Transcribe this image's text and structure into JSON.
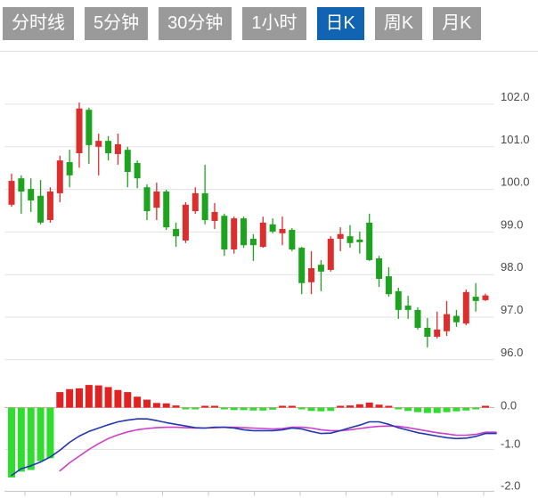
{
  "toolbar": {
    "tabs": [
      {
        "name": "tab-timeline",
        "label": "分时线",
        "active": false
      },
      {
        "name": "tab-5min",
        "label": "5分钟",
        "active": false
      },
      {
        "name": "tab-30min",
        "label": "30分钟",
        "active": false
      },
      {
        "name": "tab-1hour",
        "label": "1小时",
        "active": false
      },
      {
        "name": "tab-daily-k",
        "label": "日K",
        "active": true
      },
      {
        "name": "tab-weekly-k",
        "label": "周K",
        "active": false
      },
      {
        "name": "tab-monthly-k",
        "label": "月K",
        "active": false
      }
    ]
  },
  "colors": {
    "tab_bg": "#9a9a9a",
    "tab_active_bg": "#1064b1",
    "tab_text": "#ffffff",
    "candle_up": "#dd2e2e",
    "candle_down": "#1ea31e",
    "macd_up": "#e02222",
    "macd_down": "#2edd2e",
    "dif_line": "#2236b2",
    "dea_line": "#cc3ecb",
    "grid": "#e3e3e3",
    "zero_line": "#eaa6a6",
    "axis_line": "#c9c9c9",
    "axis_text": "#4a4a4a",
    "frame": "#dcdcdc"
  },
  "chart_data": [
    {
      "type": "candlestick",
      "panel": "price",
      "title": "",
      "xlabel": "",
      "ylabel": "",
      "grid": true,
      "legend": "none",
      "y_ticks": [
        102.0,
        101.0,
        100.0,
        99.0,
        98.0,
        97.0,
        96.0
      ],
      "y_tick_labels": [
        "102.0",
        "101.0",
        "100.0",
        "99.0",
        "98.0",
        "97.0",
        "96.0"
      ],
      "ylim": [
        95.7,
        103.1
      ],
      "color_convention": "red = rise, green = fall",
      "candles_ohlc": [
        [
          99.64,
          100.37,
          99.59,
          100.2
        ],
        [
          100.26,
          100.33,
          99.43,
          99.95
        ],
        [
          100.01,
          100.26,
          99.47,
          99.74
        ],
        [
          99.85,
          100.22,
          99.18,
          99.22
        ],
        [
          99.28,
          100.05,
          99.22,
          99.95
        ],
        [
          99.91,
          100.79,
          99.7,
          100.68
        ],
        [
          100.64,
          100.93,
          100.05,
          100.33
        ],
        [
          100.85,
          102.04,
          100.51,
          101.9
        ],
        [
          101.87,
          101.92,
          100.6,
          101.04
        ],
        [
          101.0,
          101.31,
          100.33,
          101.14
        ],
        [
          101.14,
          101.25,
          100.68,
          100.85
        ],
        [
          100.83,
          101.31,
          100.58,
          101.06
        ],
        [
          100.93,
          101.0,
          100.05,
          100.41
        ],
        [
          100.62,
          100.68,
          100.03,
          100.26
        ],
        [
          100.05,
          100.12,
          99.28,
          99.49
        ],
        [
          99.57,
          100.16,
          99.28,
          99.95
        ],
        [
          99.95,
          99.99,
          99.05,
          99.11
        ],
        [
          99.07,
          99.22,
          98.65,
          98.9
        ],
        [
          98.8,
          99.7,
          98.74,
          99.64
        ],
        [
          99.49,
          100.05,
          99.43,
          99.91
        ],
        [
          99.91,
          100.58,
          99.18,
          99.28
        ],
        [
          99.26,
          99.68,
          99.07,
          99.47
        ],
        [
          99.38,
          99.43,
          98.44,
          98.59
        ],
        [
          98.59,
          99.36,
          98.49,
          99.32
        ],
        [
          99.32,
          99.36,
          98.63,
          98.69
        ],
        [
          98.84,
          98.95,
          98.32,
          98.69
        ],
        [
          98.65,
          99.36,
          98.63,
          99.22
        ],
        [
          99.18,
          99.32,
          98.97,
          99.01
        ],
        [
          98.97,
          99.36,
          98.69,
          99.07
        ],
        [
          99.05,
          99.09,
          98.55,
          98.59
        ],
        [
          98.63,
          98.65,
          97.54,
          97.8
        ],
        [
          97.82,
          98.55,
          97.54,
          98.15
        ],
        [
          98.23,
          98.34,
          97.61,
          98.07
        ],
        [
          98.11,
          98.9,
          98.07,
          98.84
        ],
        [
          98.84,
          99.11,
          98.55,
          98.95
        ],
        [
          98.9,
          99.16,
          98.63,
          98.74
        ],
        [
          98.82,
          99.01,
          98.49,
          98.76
        ],
        [
          99.22,
          99.43,
          98.32,
          98.34
        ],
        [
          98.38,
          98.44,
          97.71,
          97.9
        ],
        [
          97.96,
          98.17,
          97.48,
          97.54
        ],
        [
          97.61,
          97.69,
          96.96,
          97.17
        ],
        [
          97.27,
          97.5,
          96.96,
          97.17
        ],
        [
          97.17,
          97.23,
          96.71,
          96.75
        ],
        [
          96.75,
          96.98,
          96.29,
          96.54
        ],
        [
          96.54,
          97.13,
          96.5,
          96.71
        ],
        [
          96.67,
          97.38,
          96.56,
          97.07
        ],
        [
          97.03,
          97.17,
          96.77,
          96.88
        ],
        [
          96.85,
          97.65,
          96.81,
          97.59
        ],
        [
          97.48,
          97.8,
          97.13,
          97.38
        ],
        [
          97.4,
          97.55,
          97.38,
          97.51
        ]
      ]
    },
    {
      "type": "bar",
      "panel": "macd-indicator",
      "grid": true,
      "y_ticks": [
        0.0,
        -1.0,
        -2.0
      ],
      "y_tick_labels": [
        "0.0",
        "-1.0",
        "-2.0"
      ],
      "ylim": [
        -2.05,
        0.7
      ],
      "x_axis_tick_count": 11,
      "histogram": [
        -1.67,
        -1.53,
        -1.49,
        -1.28,
        -1.21,
        0.37,
        0.44,
        0.46,
        0.54,
        0.53,
        0.49,
        0.42,
        0.37,
        0.26,
        0.19,
        0.11,
        0.1,
        0.05,
        -0.04,
        -0.04,
        0.03,
        0.03,
        -0.01,
        -0.06,
        -0.06,
        -0.07,
        -0.07,
        -0.05,
        0.01,
        0.02,
        -0.02,
        -0.08,
        -0.09,
        -0.08,
        0.02,
        0.05,
        0.08,
        0.12,
        0.07,
        0.02,
        -0.04,
        -0.08,
        -0.11,
        -0.13,
        -0.13,
        -0.11,
        -0.09,
        -0.07,
        -0.04,
        0.04
      ],
      "series": [
        {
          "name": "DIF",
          "color_key": "dif_line",
          "values": [
            -1.62,
            -1.46,
            -1.39,
            -1.3,
            -1.18,
            -1.02,
            -0.83,
            -0.68,
            -0.57,
            -0.49,
            -0.41,
            -0.34,
            -0.3,
            -0.27,
            -0.27,
            -0.31,
            -0.36,
            -0.4,
            -0.44,
            -0.48,
            -0.49,
            -0.47,
            -0.47,
            -0.49,
            -0.53,
            -0.55,
            -0.55,
            -0.55,
            -0.53,
            -0.49,
            -0.51,
            -0.57,
            -0.62,
            -0.61,
            -0.55,
            -0.48,
            -0.42,
            -0.34,
            -0.34,
            -0.4,
            -0.48,
            -0.54,
            -0.6,
            -0.64,
            -0.68,
            -0.72,
            -0.74,
            -0.73,
            -0.69,
            -0.62
          ]
        },
        {
          "name": "DEA",
          "color_key": "dea_line",
          "values": [
            null,
            null,
            null,
            null,
            null,
            -1.51,
            -1.32,
            -1.16,
            -1.0,
            -0.86,
            -0.74,
            -0.65,
            -0.58,
            -0.53,
            -0.5,
            -0.48,
            -0.47,
            -0.47,
            -0.48,
            -0.49,
            -0.49,
            -0.48,
            -0.47,
            -0.47,
            -0.48,
            -0.49,
            -0.5,
            -0.51,
            -0.5,
            -0.47,
            -0.47,
            -0.49,
            -0.53,
            -0.55,
            -0.55,
            -0.53,
            -0.5,
            -0.47,
            -0.45,
            -0.44,
            -0.45,
            -0.48,
            -0.52,
            -0.56,
            -0.6,
            -0.63,
            -0.66,
            -0.66,
            -0.64,
            -0.59
          ]
        }
      ]
    }
  ]
}
